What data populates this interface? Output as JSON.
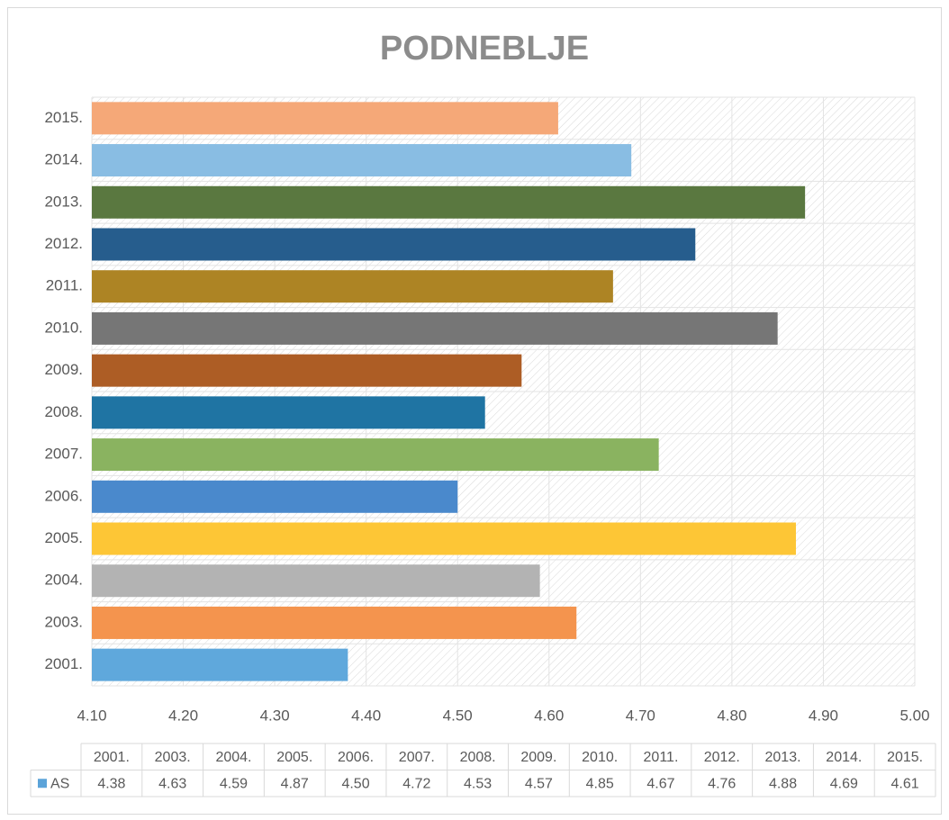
{
  "chart_data": {
    "type": "bar",
    "orientation": "horizontal",
    "title": "PODNEBLJE",
    "categories": [
      "2001.",
      "2003.",
      "2004.",
      "2005.",
      "2006.",
      "2007.",
      "2008.",
      "2009.",
      "2010.",
      "2011.",
      "2012.",
      "2013.",
      "2014.",
      "2015."
    ],
    "series": [
      {
        "name": "AS",
        "color": "#5ba3d9",
        "colors": [
          "#5fa8dc",
          "#f4944e",
          "#b3b3b3",
          "#fdc636",
          "#4a89cc",
          "#8ab360",
          "#1f74a3",
          "#ad5d25",
          "#767676",
          "#ad8424",
          "#265d8d",
          "#5a7840",
          "#89bde3",
          "#f5a878"
        ],
        "values": [
          4.38,
          4.63,
          4.59,
          4.87,
          4.5,
          4.72,
          4.53,
          4.57,
          4.85,
          4.67,
          4.76,
          4.88,
          4.69,
          4.61
        ],
        "value_labels": [
          "4.38",
          "4.63",
          "4.59",
          "4.87",
          "4.50",
          "4.72",
          "4.53",
          "4.57",
          "4.85",
          "4.67",
          "4.76",
          "4.88",
          "4.69",
          "4.61"
        ]
      }
    ],
    "xlim": [
      4.1,
      5.0
    ],
    "xticks": [
      {
        "value": 4.1,
        "label": "4.10"
      },
      {
        "value": 4.2,
        "label": "4.20"
      },
      {
        "value": 4.3,
        "label": "4.30"
      },
      {
        "value": 4.4,
        "label": "4.40"
      },
      {
        "value": 4.5,
        "label": "4.50"
      },
      {
        "value": 4.6,
        "label": "4.60"
      },
      {
        "value": 4.7,
        "label": "4.70"
      },
      {
        "value": 4.8,
        "label": "4.80"
      },
      {
        "value": 4.9,
        "label": "4.90"
      },
      {
        "value": 5.0,
        "label": "5.00"
      }
    ],
    "grid": true,
    "data_table": true
  }
}
